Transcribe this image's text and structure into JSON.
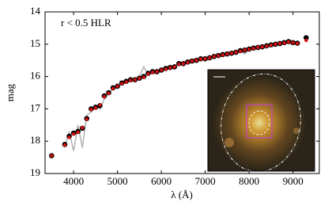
{
  "chart_data": {
    "type": "scatter",
    "annotation": "r < 0.5 HLR",
    "x_label": "λ (Å)",
    "y_label": "mag",
    "xlim": [
      3350,
      9600
    ],
    "ylim": [
      19,
      14
    ],
    "xticks": [
      4000,
      5000,
      6000,
      7000,
      8000,
      9000
    ],
    "yticks": [
      14,
      15,
      16,
      17,
      18,
      19
    ],
    "x": [
      3500,
      3800,
      3900,
      4000,
      4100,
      4200,
      4300,
      4400,
      4500,
      4600,
      4700,
      4800,
      4900,
      5000,
      5100,
      5200,
      5300,
      5400,
      5500,
      5600,
      5700,
      5800,
      5900,
      6000,
      6100,
      6200,
      6300,
      6400,
      6500,
      6600,
      6700,
      6800,
      6900,
      7000,
      7100,
      7200,
      7300,
      7400,
      7500,
      7600,
      7700,
      7800,
      7900,
      8000,
      8100,
      8200,
      8300,
      8400,
      8500,
      8600,
      8700,
      8800,
      8900,
      9000,
      9100,
      9300
    ],
    "series": [
      {
        "color": "#b0b0b0",
        "style": "line",
        "values": [
          null,
          18.2,
          17.7,
          18.3,
          17.5,
          18.2,
          17.2,
          17.1,
          16.9,
          17.0,
          16.7,
          16.5,
          16.4,
          16.3,
          16.25,
          16.1,
          16.15,
          16.1,
          16.0,
          15.7,
          15.95,
          15.85,
          15.9,
          15.8,
          15.75,
          15.7,
          15.72,
          15.6,
          15.62,
          15.55,
          15.5,
          15.52,
          15.45,
          15.47,
          15.42,
          15.36,
          15.35,
          15.33,
          15.28,
          15.3,
          15.25,
          15.22,
          15.3,
          15.15,
          15.12,
          15.1,
          15.07,
          15.05,
          15.0,
          15.02,
          14.97,
          14.95,
          14.92,
          14.95,
          14.98,
          null
        ]
      },
      {
        "color": "#000000",
        "style": "dot",
        "values": [
          18.45,
          18.1,
          17.85,
          17.75,
          17.7,
          17.6,
          17.3,
          17.0,
          16.95,
          16.9,
          16.6,
          16.5,
          16.35,
          16.3,
          16.2,
          16.15,
          16.1,
          16.1,
          16.05,
          16.0,
          15.9,
          15.85,
          15.85,
          15.8,
          15.75,
          15.72,
          15.7,
          15.6,
          15.6,
          15.55,
          15.52,
          15.5,
          15.45,
          15.45,
          15.42,
          15.38,
          15.35,
          15.32,
          15.3,
          15.28,
          15.25,
          15.2,
          15.18,
          15.15,
          15.12,
          15.1,
          15.08,
          15.05,
          15.02,
          15.0,
          14.98,
          14.95,
          14.92,
          14.95,
          14.97,
          14.8
        ]
      },
      {
        "color": "#d01010",
        "style": "smalldot",
        "values": [
          18.45,
          18.12,
          17.88,
          17.78,
          17.72,
          17.58,
          17.32,
          17.02,
          16.97,
          16.88,
          16.62,
          16.52,
          16.37,
          16.3,
          16.22,
          16.17,
          16.12,
          16.1,
          16.05,
          16.02,
          15.92,
          15.87,
          15.85,
          15.8,
          15.77,
          15.73,
          15.7,
          15.62,
          15.6,
          15.56,
          15.52,
          15.5,
          15.46,
          15.45,
          15.42,
          15.38,
          15.36,
          15.33,
          15.3,
          15.28,
          15.25,
          15.22,
          15.18,
          15.16,
          15.13,
          15.1,
          15.08,
          15.06,
          15.03,
          15.0,
          14.98,
          14.96,
          14.93,
          14.95,
          14.98,
          14.88
        ]
      }
    ]
  }
}
